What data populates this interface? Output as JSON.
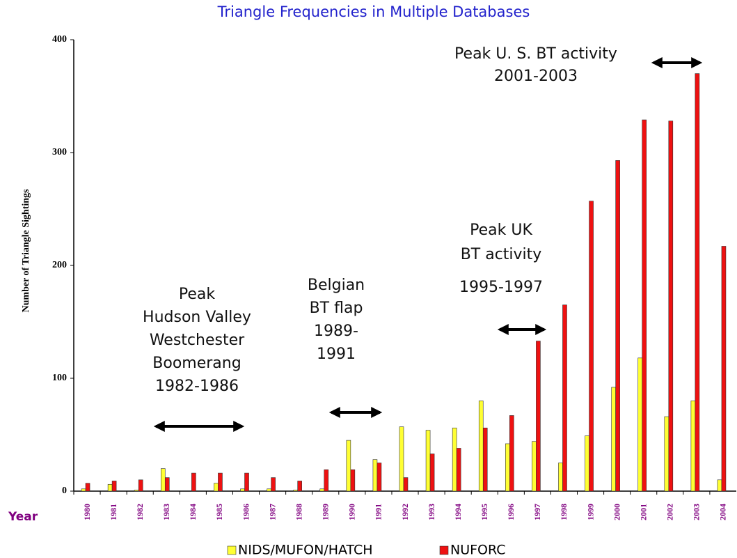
{
  "chart_data": {
    "type": "bar",
    "title": "Triangle Frequencies in Multiple Databases",
    "y_label": "Number of Triangle Sightings",
    "x_label": "Year",
    "categories": [
      "1980",
      "1981",
      "1982",
      "1983",
      "1984",
      "1985",
      "1986",
      "1987",
      "1988",
      "1989",
      "1990",
      "1991",
      "1992",
      "1993",
      "1994",
      "1995",
      "1996",
      "1997",
      "1998",
      "1999",
      "2000",
      "2001",
      "2002",
      "2003",
      "2004"
    ],
    "series": [
      {
        "name": "NIDS/MUFON/HATCH",
        "color": "#ffff33",
        "values": [
          2,
          6,
          1,
          20,
          0,
          7,
          2,
          2,
          1,
          2,
          45,
          28,
          57,
          54,
          56,
          80,
          42,
          44,
          25,
          49,
          92,
          118,
          66,
          80,
          10
        ]
      },
      {
        "name": "NUFORC",
        "color": "#ee1111",
        "values": [
          7,
          9,
          10,
          12,
          16,
          16,
          16,
          12,
          9,
          19,
          19,
          25,
          12,
          33,
          38,
          56,
          67,
          133,
          165,
          257,
          293,
          329,
          328,
          370,
          217
        ]
      }
    ],
    "ylim": [
      0,
      400
    ],
    "yticks": [
      0,
      100,
      200,
      300,
      400
    ],
    "legend": "bottom",
    "annotations": [
      {
        "lines": [
          "Peak",
          "Hudson Valley",
          "Westchester",
          "Boomerang",
          "1982-1986"
        ]
      },
      {
        "lines": [
          "Belgian",
          "BT flap",
          "1989-",
          "1991"
        ]
      },
      {
        "lines": [
          "Peak UK",
          "BT activity",
          "1995-1997"
        ]
      },
      {
        "lines": [
          "Peak U. S. BT activity",
          "2001-2003"
        ]
      }
    ]
  }
}
